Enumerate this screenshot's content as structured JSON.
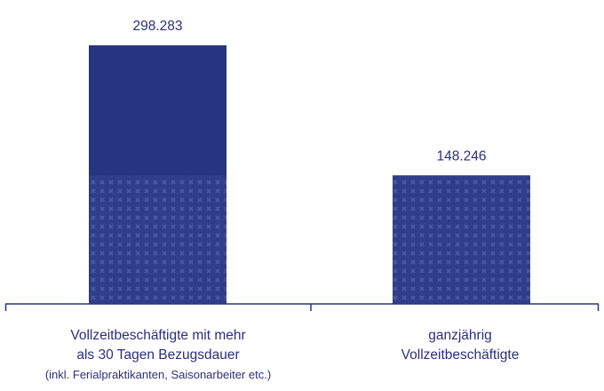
{
  "colors": {
    "bar": "#253580",
    "pattern_bg": "#2f3e88",
    "pattern_mark": "#4a5aa2",
    "axis": "#253580",
    "text": "#2b2f7c"
  },
  "chart_data": {
    "type": "bar",
    "categories": [
      "Vollzeitbeschäftigte mit mehr als 30 Tagen Bezugsdauer (inkl. Ferialpraktikanten, Saisonarbeiter etc.)",
      "ganzjährig Vollzeitbeschäftigte"
    ],
    "values": [
      298283,
      148246
    ],
    "value_labels": [
      "298.283",
      "148.246"
    ],
    "patterned_portion": [
      148246,
      148246
    ],
    "title": "",
    "xlabel": "",
    "ylabel": "",
    "ylim": [
      0,
      298283
    ],
    "grid": false,
    "legend": "none"
  },
  "labels": {
    "cat1_line1": "Vollzeitbeschäftigte mit mehr",
    "cat1_line2": "als 30 Tagen Bezugsdauer",
    "cat1_line3": "(inkl. Ferialpraktikanten, Saisonarbeiter etc.)",
    "cat2_line1": "ganzjährig",
    "cat2_line2": "Vollzeitbeschäftigte"
  }
}
